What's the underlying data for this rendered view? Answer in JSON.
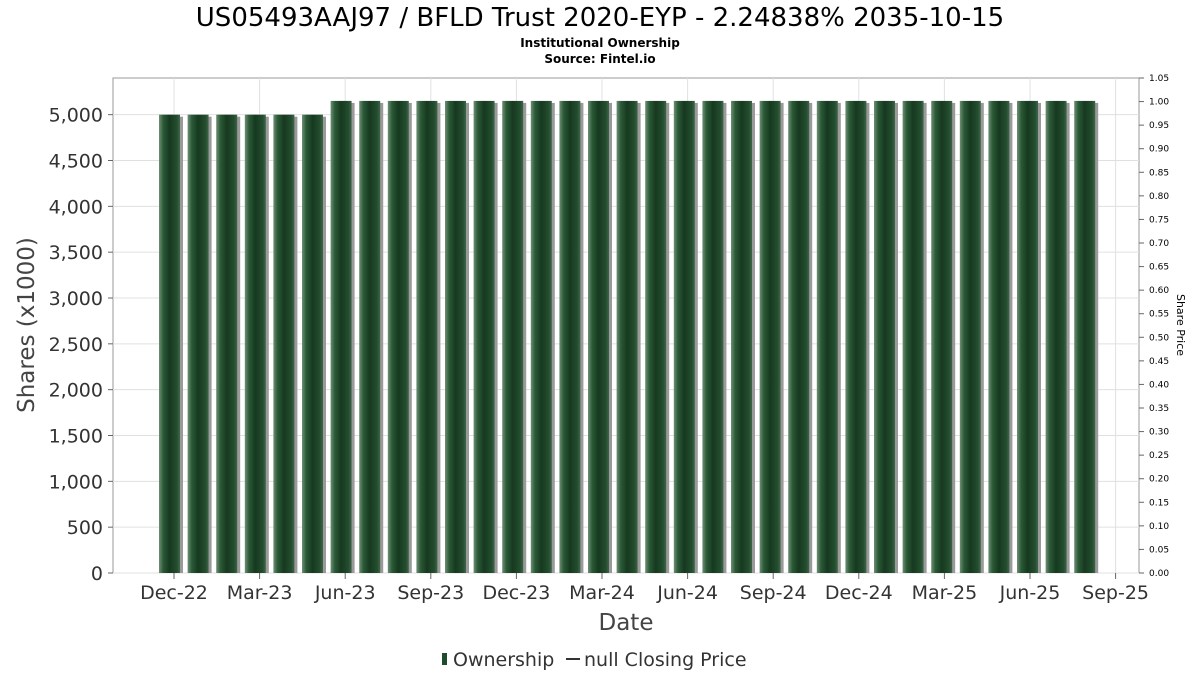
{
  "chart_data": {
    "type": "bar",
    "title": "US05493AAJ97 / BFLD Trust 2020-EYP - 2.24838% 2035-10-15",
    "subtitle_lines": [
      "Institutional Ownership",
      "Source: Fintel.io"
    ],
    "xlabel": "Date",
    "ylabel": "Shares (x1000)",
    "ylabel_right": "Share Price",
    "ylim": [
      0,
      5400
    ],
    "ylim_right": [
      0,
      1.05
    ],
    "grid": true,
    "x_tick_labels": [
      "Dec-22",
      "Mar-23",
      "Jun-23",
      "Sep-23",
      "Dec-23",
      "Mar-24",
      "Jun-24",
      "Sep-24",
      "Dec-24",
      "Mar-25",
      "Jun-25",
      "Sep-25"
    ],
    "y_tick_labels": [
      "0",
      "500",
      "1,000",
      "1,500",
      "2,000",
      "2,500",
      "3,000",
      "3,500",
      "4,000",
      "4,500",
      "5,000"
    ],
    "y_ticks": [
      0,
      500,
      1000,
      1500,
      2000,
      2500,
      3000,
      3500,
      4000,
      4500,
      5000
    ],
    "y_right_tick_labels": [
      "0.00",
      "0.05",
      "0.10",
      "0.15",
      "0.20",
      "0.25",
      "0.30",
      "0.35",
      "0.40",
      "0.45",
      "0.50",
      "0.55",
      "0.60",
      "0.65",
      "0.70",
      "0.75",
      "0.80",
      "0.85",
      "0.90",
      "0.95",
      "1.00",
      "1.05"
    ],
    "series": [
      {
        "name": "Ownership",
        "color": "#1e4d2b",
        "values": [
          5000,
          5000,
          5000,
          5000,
          5000,
          5000,
          5150,
          5150,
          5150,
          5150,
          5150,
          5150,
          5150,
          5150,
          5150,
          5150,
          5150,
          5150,
          5150,
          5150,
          5150,
          5150,
          5150,
          5150,
          5150,
          5150,
          5150,
          5150,
          5150,
          5150,
          5150,
          5150,
          5150
        ]
      },
      {
        "name": "null Closing Price",
        "color": "#333333",
        "values": []
      }
    ],
    "legend": [
      "Ownership",
      "null Closing Price"
    ],
    "legend_position": "bottom"
  }
}
